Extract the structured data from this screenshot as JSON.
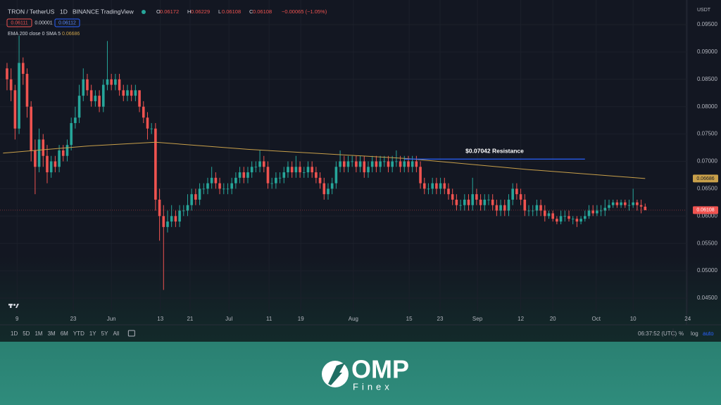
{
  "chart_data": {
    "type": "candlestick",
    "symbol": "TRON / TetherUS",
    "interval": "1D",
    "exchange": "BINANCE",
    "source": "TradingView",
    "ohlc": [
      {
        "label": "O",
        "value": 0.06172
      },
      {
        "label": "H",
        "value": 0.06229
      },
      {
        "label": "L",
        "value": 0.06108
      },
      {
        "label": "C",
        "value": 0.06108
      }
    ],
    "change": "−0.00065 (−1.05%)",
    "bid": 0.06111,
    "spread": 1e-05,
    "ask": 0.06112,
    "currency": "USDT",
    "up_color": "#26a69a",
    "down_color": "#ef5350",
    "open": [
      0.087,
      0.085,
      0.083,
      0.076,
      0.088,
      0.086,
      0.08,
      0.072,
      0.069,
      0.074,
      0.071,
      0.068,
      0.07,
      0.069,
      0.072,
      0.071,
      0.073,
      0.077,
      0.078,
      0.082,
      0.085,
      0.083,
      0.081,
      0.082,
      0.08,
      0.084,
      0.085,
      0.084,
      0.085,
      0.083,
      0.082,
      0.083,
      0.082,
      0.083,
      0.08,
      0.078,
      0.076,
      0.076,
      0.063,
      0.06,
      0.058,
      0.059,
      0.06,
      0.059,
      0.061,
      0.061,
      0.062,
      0.064,
      0.063,
      0.065,
      0.065,
      0.066,
      0.067,
      0.066,
      0.065,
      0.065,
      0.065,
      0.066,
      0.067,
      0.068,
      0.067,
      0.068,
      0.069,
      0.069,
      0.07,
      0.069,
      0.066,
      0.066,
      0.067,
      0.067,
      0.068,
      0.069,
      0.068,
      0.069,
      0.068,
      0.068,
      0.069,
      0.068,
      0.067,
      0.066,
      0.064,
      0.065,
      0.066,
      0.069,
      0.07,
      0.069,
      0.07,
      0.07,
      0.069,
      0.07,
      0.068,
      0.069,
      0.07,
      0.069,
      0.07,
      0.07,
      0.069,
      0.07,
      0.07,
      0.069,
      0.07,
      0.069,
      0.07,
      0.069,
      0.066,
      0.065,
      0.065,
      0.066,
      0.065,
      0.066,
      0.065,
      0.064,
      0.063,
      0.062,
      0.062,
      0.063,
      0.062,
      0.064,
      0.063,
      0.062,
      0.063,
      0.063,
      0.062,
      0.061,
      0.062,
      0.061,
      0.063,
      0.065,
      0.064,
      0.063,
      0.061,
      0.061,
      0.061,
      0.062,
      0.061,
      0.06,
      0.0605,
      0.0595,
      0.059,
      0.06,
      0.06,
      0.0595,
      0.0595,
      0.059,
      0.0595,
      0.06,
      0.061,
      0.0605,
      0.061,
      0.061,
      0.0615,
      0.062,
      0.0625,
      0.062,
      0.0625,
      0.062,
      0.062,
      0.0625,
      0.062,
      0.06172
    ],
    "high": [
      0.088,
      0.087,
      0.084,
      0.093,
      0.089,
      0.087,
      0.081,
      0.074,
      0.076,
      0.075,
      0.073,
      0.071,
      0.071,
      0.073,
      0.073,
      0.074,
      0.078,
      0.08,
      0.084,
      0.087,
      0.086,
      0.084,
      0.083,
      0.083,
      0.085,
      0.092,
      0.086,
      0.086,
      0.086,
      0.084,
      0.084,
      0.084,
      0.084,
      0.083,
      0.081,
      0.079,
      0.077,
      0.077,
      0.065,
      0.062,
      0.061,
      0.062,
      0.061,
      0.062,
      0.062,
      0.064,
      0.065,
      0.065,
      0.066,
      0.066,
      0.067,
      0.069,
      0.068,
      0.067,
      0.066,
      0.066,
      0.067,
      0.068,
      0.069,
      0.069,
      0.069,
      0.07,
      0.07,
      0.072,
      0.071,
      0.07,
      0.067,
      0.068,
      0.068,
      0.069,
      0.07,
      0.07,
      0.071,
      0.07,
      0.069,
      0.07,
      0.07,
      0.069,
      0.068,
      0.067,
      0.066,
      0.067,
      0.07,
      0.072,
      0.071,
      0.071,
      0.071,
      0.071,
      0.071,
      0.071,
      0.07,
      0.071,
      0.071,
      0.071,
      0.071,
      0.071,
      0.071,
      0.072,
      0.071,
      0.071,
      0.071,
      0.071,
      0.071,
      0.07,
      0.067,
      0.066,
      0.067,
      0.067,
      0.067,
      0.067,
      0.066,
      0.065,
      0.064,
      0.063,
      0.064,
      0.064,
      0.067,
      0.065,
      0.064,
      0.064,
      0.064,
      0.064,
      0.063,
      0.063,
      0.063,
      0.064,
      0.066,
      0.066,
      0.065,
      0.064,
      0.062,
      0.062,
      0.063,
      0.063,
      0.062,
      0.061,
      0.061,
      0.06,
      0.061,
      0.061,
      0.061,
      0.06,
      0.06,
      0.06,
      0.061,
      0.062,
      0.062,
      0.062,
      0.062,
      0.063,
      0.063,
      0.063,
      0.063,
      0.063,
      0.063,
      0.063,
      0.065,
      0.063,
      0.063,
      0.06229
    ],
    "low": [
      0.083,
      0.081,
      0.074,
      0.075,
      0.084,
      0.078,
      0.07,
      0.064,
      0.068,
      0.069,
      0.066,
      0.067,
      0.068,
      0.068,
      0.07,
      0.07,
      0.072,
      0.076,
      0.077,
      0.081,
      0.082,
      0.08,
      0.08,
      0.079,
      0.079,
      0.083,
      0.083,
      0.083,
      0.082,
      0.081,
      0.081,
      0.081,
      0.081,
      0.079,
      0.077,
      0.074,
      0.075,
      0.061,
      0.0555,
      0.0465,
      0.057,
      0.058,
      0.058,
      0.058,
      0.06,
      0.06,
      0.061,
      0.062,
      0.062,
      0.064,
      0.064,
      0.065,
      0.065,
      0.064,
      0.064,
      0.064,
      0.064,
      0.065,
      0.066,
      0.066,
      0.066,
      0.067,
      0.068,
      0.068,
      0.068,
      0.065,
      0.065,
      0.065,
      0.066,
      0.066,
      0.067,
      0.067,
      0.067,
      0.067,
      0.067,
      0.067,
      0.067,
      0.066,
      0.065,
      0.063,
      0.063,
      0.064,
      0.065,
      0.068,
      0.068,
      0.068,
      0.069,
      0.068,
      0.068,
      0.067,
      0.067,
      0.068,
      0.068,
      0.068,
      0.069,
      0.068,
      0.068,
      0.069,
      0.068,
      0.068,
      0.068,
      0.068,
      0.068,
      0.065,
      0.064,
      0.064,
      0.064,
      0.064,
      0.064,
      0.064,
      0.063,
      0.062,
      0.061,
      0.061,
      0.061,
      0.061,
      0.061,
      0.062,
      0.061,
      0.061,
      0.062,
      0.061,
      0.06,
      0.06,
      0.06,
      0.06,
      0.062,
      0.063,
      0.062,
      0.06,
      0.06,
      0.06,
      0.06,
      0.06,
      0.059,
      0.0595,
      0.059,
      0.0585,
      0.0585,
      0.059,
      0.059,
      0.0585,
      0.058,
      0.0585,
      0.059,
      0.0595,
      0.06,
      0.06,
      0.06,
      0.06,
      0.061,
      0.0615,
      0.0615,
      0.0615,
      0.0615,
      0.061,
      0.0615,
      0.061,
      0.0605,
      0.06108
    ],
    "close": [
      0.085,
      0.083,
      0.076,
      0.088,
      0.086,
      0.08,
      0.072,
      0.069,
      0.074,
      0.071,
      0.068,
      0.07,
      0.069,
      0.072,
      0.071,
      0.073,
      0.077,
      0.078,
      0.082,
      0.085,
      0.083,
      0.081,
      0.082,
      0.08,
      0.084,
      0.085,
      0.084,
      0.085,
      0.083,
      0.082,
      0.083,
      0.082,
      0.083,
      0.08,
      0.078,
      0.076,
      0.076,
      0.063,
      0.06,
      0.058,
      0.059,
      0.06,
      0.059,
      0.061,
      0.061,
      0.062,
      0.064,
      0.063,
      0.065,
      0.065,
      0.066,
      0.067,
      0.066,
      0.065,
      0.065,
      0.065,
      0.066,
      0.067,
      0.068,
      0.067,
      0.068,
      0.069,
      0.069,
      0.07,
      0.069,
      0.066,
      0.066,
      0.067,
      0.067,
      0.068,
      0.069,
      0.068,
      0.069,
      0.068,
      0.068,
      0.069,
      0.068,
      0.067,
      0.066,
      0.064,
      0.065,
      0.066,
      0.069,
      0.07,
      0.069,
      0.07,
      0.07,
      0.069,
      0.07,
      0.068,
      0.069,
      0.07,
      0.069,
      0.07,
      0.07,
      0.069,
      0.07,
      0.07,
      0.069,
      0.07,
      0.069,
      0.07,
      0.069,
      0.066,
      0.065,
      0.065,
      0.066,
      0.065,
      0.066,
      0.065,
      0.064,
      0.063,
      0.062,
      0.062,
      0.063,
      0.062,
      0.064,
      0.063,
      0.062,
      0.063,
      0.063,
      0.062,
      0.061,
      0.062,
      0.061,
      0.063,
      0.065,
      0.064,
      0.063,
      0.061,
      0.061,
      0.061,
      0.062,
      0.061,
      0.06,
      0.0605,
      0.0595,
      0.059,
      0.06,
      0.06,
      0.0595,
      0.0595,
      0.059,
      0.0595,
      0.06,
      0.061,
      0.0605,
      0.061,
      0.061,
      0.0615,
      0.062,
      0.0625,
      0.062,
      0.0625,
      0.062,
      0.062,
      0.0625,
      0.062,
      0.06173,
      0.06108
    ],
    "ema": {
      "name": "EMA 200 close 0 SMA 5",
      "color": "#c9a04a",
      "x": [
        -1,
        20,
        37,
        60,
        100,
        130,
        159
      ],
      "values": [
        0.0715,
        0.0728,
        0.0735,
        0.0722,
        0.0705,
        0.0685,
        0.06686
      ]
    },
    "annotation": {
      "text": "$0.07042 Resistance",
      "value": 0.07042,
      "from": 99,
      "to": 144,
      "color": "#2962ff"
    },
    "xlim": [
      -1.75,
      169.3
    ],
    "xticks": [
      {
        "value": 2.5,
        "label": "9"
      },
      {
        "value": 16.5,
        "label": "23"
      },
      {
        "value": 26,
        "label": "Jun"
      },
      {
        "value": 38.2,
        "label": "13"
      },
      {
        "value": 45.6,
        "label": "21"
      },
      {
        "value": 55.3,
        "label": "Jul"
      },
      {
        "value": 65.3,
        "label": "11"
      },
      {
        "value": 73.2,
        "label": "19"
      },
      {
        "value": 86.3,
        "label": "Aug"
      },
      {
        "value": 100.2,
        "label": "15"
      },
      {
        "value": 107.9,
        "label": "23"
      },
      {
        "value": 117.2,
        "label": "Sep"
      },
      {
        "value": 128,
        "label": "12"
      },
      {
        "value": 136,
        "label": "20"
      },
      {
        "value": 146.8,
        "label": "Oct"
      },
      {
        "value": 156,
        "label": "10"
      },
      {
        "value": 169.6,
        "label": "24"
      }
    ],
    "ylim": [
      0.0423,
      0.0995
    ],
    "yticks": [
      {
        "value": 0.095,
        "label": "0.09500"
      },
      {
        "value": 0.09,
        "label": "0.09000"
      },
      {
        "value": 0.085,
        "label": "0.08500"
      },
      {
        "value": 0.08,
        "label": "0.08000"
      },
      {
        "value": 0.075,
        "label": "0.07500"
      },
      {
        "value": 0.07,
        "label": "0.07000"
      },
      {
        "value": 0.065,
        "label": "0.06500"
      },
      {
        "value": 0.06,
        "label": "0.06000"
      },
      {
        "value": 0.055,
        "label": "0.05500"
      },
      {
        "value": 0.05,
        "label": "0.05000"
      },
      {
        "value": 0.045,
        "label": "0.04500"
      }
    ],
    "grid": true,
    "ranges": [
      "1D",
      "5D",
      "1M",
      "3M",
      "6M",
      "YTD",
      "1Y",
      "5Y",
      "All"
    ],
    "clock": "06:37:52 (UTC)",
    "scale_options": [
      "%",
      "log",
      "auto"
    ]
  },
  "footer": {
    "brand": "OMP",
    "sub": "Finex"
  }
}
